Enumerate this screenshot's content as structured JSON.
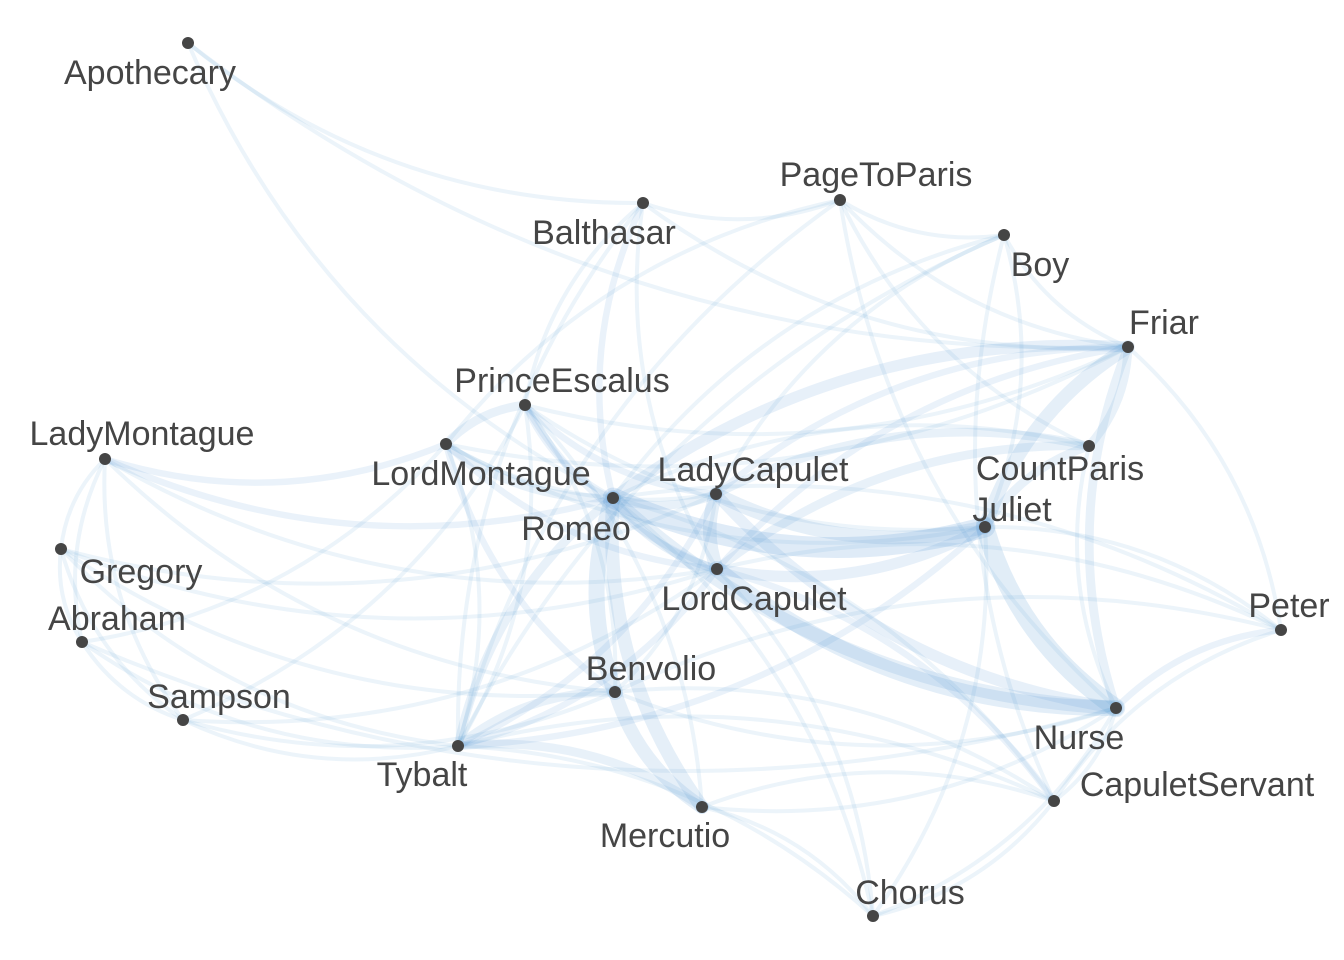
{
  "graph": {
    "nodes": [
      {
        "id": "Apothecary",
        "label": "Apothecary"
      },
      {
        "id": "PageToParis",
        "label": "PageToParis"
      },
      {
        "id": "Balthasar",
        "label": "Balthasar"
      },
      {
        "id": "Boy",
        "label": "Boy"
      },
      {
        "id": "Friar",
        "label": "Friar"
      },
      {
        "id": "PrinceEscalus",
        "label": "PrinceEscalus"
      },
      {
        "id": "LadyMontague",
        "label": "LadyMontague"
      },
      {
        "id": "LordMontague",
        "label": "LordMontague"
      },
      {
        "id": "LadyCapulet",
        "label": "LadyCapulet"
      },
      {
        "id": "CountParis",
        "label": "CountParis"
      },
      {
        "id": "Juliet",
        "label": "Juliet"
      },
      {
        "id": "Romeo",
        "label": "Romeo"
      },
      {
        "id": "Gregory",
        "label": "Gregory"
      },
      {
        "id": "LordCapulet",
        "label": "LordCapulet"
      },
      {
        "id": "Abraham",
        "label": "Abraham"
      },
      {
        "id": "Peter",
        "label": "Peter"
      },
      {
        "id": "Benvolio",
        "label": "Benvolio"
      },
      {
        "id": "Sampson",
        "label": "Sampson"
      },
      {
        "id": "Nurse",
        "label": "Nurse"
      },
      {
        "id": "Tybalt",
        "label": "Tybalt"
      },
      {
        "id": "CapuletServant",
        "label": "CapuletServant"
      },
      {
        "id": "Mercutio",
        "label": "Mercutio"
      },
      {
        "id": "Chorus",
        "label": "Chorus"
      }
    ],
    "edges": [
      [
        "Romeo",
        "Juliet",
        8
      ],
      [
        "Romeo",
        "Nurse",
        5
      ],
      [
        "Juliet",
        "Nurse",
        7
      ],
      [
        "LordCapulet",
        "Nurse",
        6
      ],
      [
        "Romeo",
        "Benvolio",
        6
      ],
      [
        "Romeo",
        "Mercutio",
        5
      ],
      [
        "Benvolio",
        "Mercutio",
        5
      ],
      [
        "Friar",
        "Romeo",
        4
      ],
      [
        "Friar",
        "Juliet",
        5
      ],
      [
        "Friar",
        "Nurse",
        3
      ],
      [
        "LadyCapulet",
        "Juliet",
        5
      ],
      [
        "LadyCapulet",
        "LordCapulet",
        5
      ],
      [
        "LadyCapulet",
        "Nurse",
        4
      ],
      [
        "LordCapulet",
        "Juliet",
        4
      ],
      [
        "CountParis",
        "Juliet",
        3
      ],
      [
        "CountParis",
        "LordCapulet",
        3
      ],
      [
        "CountParis",
        "LadyCapulet",
        3
      ],
      [
        "CountParis",
        "Friar",
        3
      ],
      [
        "Romeo",
        "LadyCapulet",
        3
      ],
      [
        "Romeo",
        "LordCapulet",
        3
      ],
      [
        "Romeo",
        "Tybalt",
        3
      ],
      [
        "Benvolio",
        "Tybalt",
        3
      ],
      [
        "Mercutio",
        "Tybalt",
        3
      ],
      [
        "PrinceEscalus",
        "LordMontague",
        3
      ],
      [
        "PrinceEscalus",
        "LordCapulet",
        2
      ],
      [
        "PrinceEscalus",
        "Romeo",
        2
      ],
      [
        "LordMontague",
        "Romeo",
        3
      ],
      [
        "LordMontague",
        "Benvolio",
        2
      ],
      [
        "LadyMontague",
        "LordMontague",
        2
      ],
      [
        "LadyMontague",
        "Romeo",
        2
      ],
      [
        "LadyMontague",
        "Benvolio",
        1
      ],
      [
        "LadyMontague",
        "Gregory",
        1
      ],
      [
        "LadyMontague",
        "Abraham",
        1
      ],
      [
        "LadyMontague",
        "Sampson",
        1
      ],
      [
        "Gregory",
        "Sampson",
        1
      ],
      [
        "Gregory",
        "Abraham",
        1
      ],
      [
        "Abraham",
        "Sampson",
        1
      ],
      [
        "Gregory",
        "Benvolio",
        1
      ],
      [
        "Sampson",
        "Benvolio",
        1
      ],
      [
        "Abraham",
        "Tybalt",
        1
      ],
      [
        "Gregory",
        "Tybalt",
        1
      ],
      [
        "Sampson",
        "Tybalt",
        1
      ],
      [
        "Gregory",
        "LordCapulet",
        1
      ],
      [
        "Sampson",
        "LordCapulet",
        1
      ],
      [
        "Abraham",
        "LordMontague",
        1
      ],
      [
        "Gregory",
        "LadyCapulet",
        1
      ],
      [
        "Sampson",
        "PrinceEscalus",
        1
      ],
      [
        "Abraham",
        "Nurse",
        1
      ],
      [
        "Balthasar",
        "Romeo",
        2
      ],
      [
        "Balthasar",
        "Friar",
        1
      ],
      [
        "Balthasar",
        "PrinceEscalus",
        1
      ],
      [
        "Balthasar",
        "LordCapulet",
        1
      ],
      [
        "Balthasar",
        "PageToParis",
        1
      ],
      [
        "Balthasar",
        "Tybalt",
        1
      ],
      [
        "Apothecary",
        "Romeo",
        1
      ],
      [
        "Apothecary",
        "Balthasar",
        1
      ],
      [
        "Apothecary",
        "Friar",
        1
      ],
      [
        "PageToParis",
        "CountParis",
        1
      ],
      [
        "PageToParis",
        "Friar",
        1
      ],
      [
        "PageToParis",
        "LordMontague",
        1
      ],
      [
        "PageToParis",
        "Tybalt",
        1
      ],
      [
        "PageToParis",
        "Nurse",
        1
      ],
      [
        "PageToParis",
        "Boy",
        1
      ],
      [
        "Boy",
        "Friar",
        1
      ],
      [
        "Boy",
        "LadyCapulet",
        1
      ],
      [
        "Boy",
        "Romeo",
        1
      ],
      [
        "Boy",
        "Tybalt",
        1
      ],
      [
        "Boy",
        "CapuletServant",
        1
      ],
      [
        "Peter",
        "Nurse",
        2
      ],
      [
        "Peter",
        "Friar",
        1
      ],
      [
        "Peter",
        "Juliet",
        1
      ],
      [
        "Peter",
        "LordCapulet",
        1
      ],
      [
        "Peter",
        "Benvolio",
        1
      ],
      [
        "Peter",
        "CapuletServant",
        1
      ],
      [
        "CapuletServant",
        "Romeo",
        1
      ],
      [
        "CapuletServant",
        "LordCapulet",
        2
      ],
      [
        "CapuletServant",
        "Tybalt",
        1
      ],
      [
        "CapuletServant",
        "Mercutio",
        1
      ],
      [
        "CapuletServant",
        "Benvolio",
        1
      ],
      [
        "CapuletServant",
        "Nurse",
        1
      ],
      [
        "Chorus",
        "Juliet",
        1
      ],
      [
        "Chorus",
        "Romeo",
        1
      ],
      [
        "Chorus",
        "Tybalt",
        1
      ],
      [
        "Chorus",
        "Nurse",
        1
      ],
      [
        "Chorus",
        "Mercutio",
        1
      ],
      [
        "Chorus",
        "LordCapulet",
        1
      ],
      [
        "Chorus",
        "CapuletServant",
        1
      ],
      [
        "Tybalt",
        "Juliet",
        2
      ],
      [
        "Tybalt",
        "LordCapulet",
        2
      ],
      [
        "Tybalt",
        "LadyCapulet",
        2
      ],
      [
        "Tybalt",
        "PrinceEscalus",
        1
      ],
      [
        "Tybalt",
        "LordMontague",
        1
      ],
      [
        "Mercutio",
        "Nurse",
        1
      ],
      [
        "Mercutio",
        "PrinceEscalus",
        1
      ],
      [
        "Benvolio",
        "PrinceEscalus",
        1
      ],
      [
        "Benvolio",
        "LadyCapulet",
        1
      ],
      [
        "Benvolio",
        "Nurse",
        1
      ],
      [
        "LordMontague",
        "LadyCapulet",
        1
      ],
      [
        "LordMontague",
        "LordCapulet",
        2
      ],
      [
        "LordMontague",
        "Juliet",
        1
      ],
      [
        "LordMontague",
        "Friar",
        1
      ],
      [
        "PrinceEscalus",
        "LadyCapulet",
        2
      ],
      [
        "PrinceEscalus",
        "Friar",
        1
      ],
      [
        "PrinceEscalus",
        "Juliet",
        1
      ],
      [
        "Juliet",
        "Boy",
        1
      ],
      [
        "Friar",
        "LordCapulet",
        2
      ],
      [
        "Friar",
        "LadyCapulet",
        2
      ],
      [
        "CountParis",
        "Romeo",
        1
      ],
      [
        "CountParis",
        "Nurse",
        1
      ],
      [
        "LadyMontague",
        "LordCapulet",
        1
      ],
      [
        "Peter",
        "Romeo",
        1
      ]
    ]
  },
  "colors": {
    "edge": "#5b9bd5",
    "node": "#454545",
    "label": "#454545",
    "background": "#ffffff"
  }
}
